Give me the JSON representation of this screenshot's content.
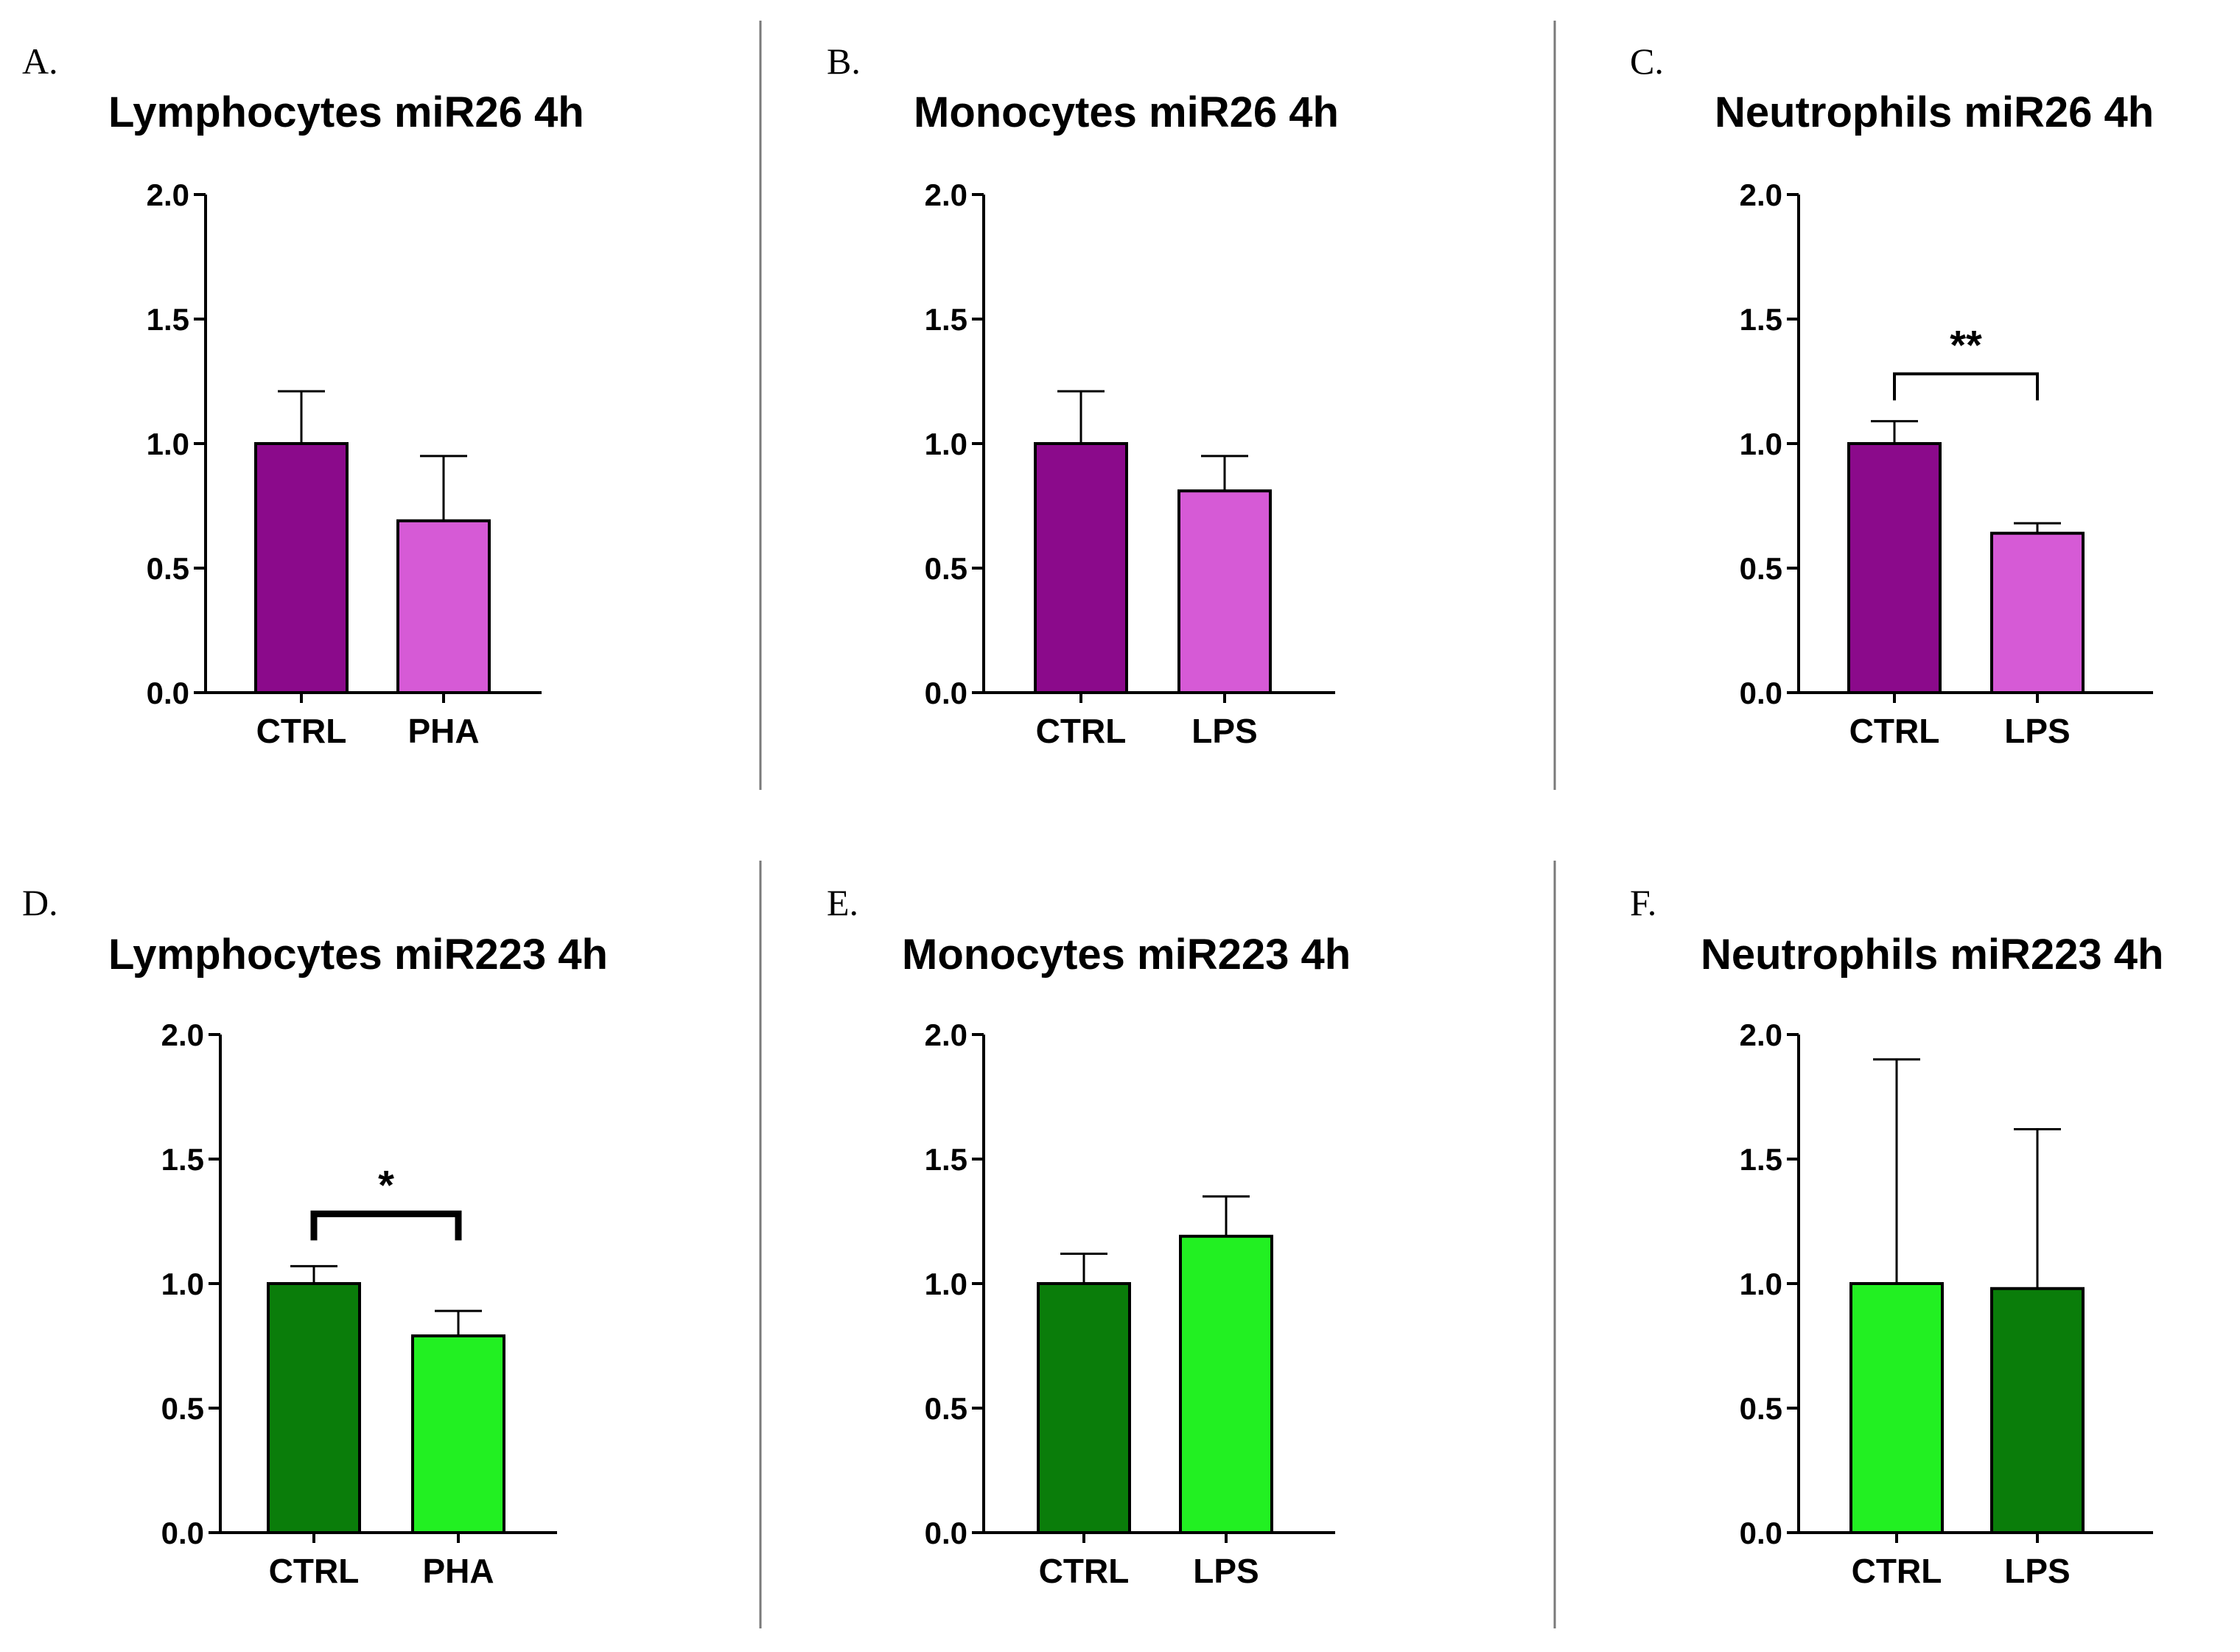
{
  "figure": {
    "colors": {
      "purple_dark": "#8b0a8b",
      "purple_light": "#d65ad6",
      "green_dark": "#0a7d0a",
      "green_light": "#22f022"
    }
  },
  "chart_data": [
    {
      "panel": "A.",
      "type": "bar",
      "title": "Lymphocytes miR26 4h",
      "categories": [
        "CTRL",
        "PHA"
      ],
      "values": [
        1.0,
        0.69
      ],
      "errors": [
        0.21,
        0.26
      ],
      "colors": [
        "#8b0a8b",
        "#d65ad6"
      ],
      "ylim": [
        0,
        2.0
      ],
      "yticks": [
        "0.0",
        "0.5",
        "1.0",
        "1.5",
        "2.0"
      ],
      "xlabel": "",
      "ylabel": "",
      "significance": null
    },
    {
      "panel": "B.",
      "type": "bar",
      "title": "Monocytes miR26 4h",
      "categories": [
        "CTRL",
        "LPS"
      ],
      "values": [
        1.0,
        0.81
      ],
      "errors": [
        0.21,
        0.14
      ],
      "colors": [
        "#8b0a8b",
        "#d65ad6"
      ],
      "ylim": [
        0,
        2.0
      ],
      "yticks": [
        "0.0",
        "0.5",
        "1.0",
        "1.5",
        "2.0"
      ],
      "xlabel": "",
      "ylabel": "",
      "significance": null
    },
    {
      "panel": "C.",
      "type": "bar",
      "title": "Neutrophils miR26 4h",
      "categories": [
        "CTRL",
        "LPS"
      ],
      "values": [
        1.0,
        0.64
      ],
      "errors": [
        0.09,
        0.04
      ],
      "colors": [
        "#8b0a8b",
        "#d65ad6"
      ],
      "ylim": [
        0,
        2.0
      ],
      "yticks": [
        "0.0",
        "0.5",
        "1.0",
        "1.5",
        "2.0"
      ],
      "xlabel": "",
      "ylabel": "",
      "significance": {
        "label": "**",
        "level": 1.28,
        "heavy": false
      }
    },
    {
      "panel": "D.",
      "type": "bar",
      "title": "Lymphocytes miR223 4h",
      "categories": [
        "CTRL",
        "PHA"
      ],
      "values": [
        1.0,
        0.79
      ],
      "errors": [
        0.07,
        0.1
      ],
      "colors": [
        "#0a7d0a",
        "#22f022"
      ],
      "ylim": [
        0,
        2.0
      ],
      "yticks": [
        "0.0",
        "0.5",
        "1.0",
        "1.5",
        "2.0"
      ],
      "xlabel": "",
      "ylabel": "",
      "significance": {
        "label": "*",
        "level": 1.28,
        "heavy": true
      }
    },
    {
      "panel": "E.",
      "type": "bar",
      "title": "Monocytes miR223 4h",
      "categories": [
        "CTRL",
        "LPS"
      ],
      "values": [
        1.0,
        1.19
      ],
      "errors": [
        0.12,
        0.16
      ],
      "colors": [
        "#0a7d0a",
        "#22f022"
      ],
      "ylim": [
        0,
        2.0
      ],
      "yticks": [
        "0.0",
        "0.5",
        "1.0",
        "1.5",
        "2.0"
      ],
      "xlabel": "",
      "ylabel": "",
      "significance": null
    },
    {
      "panel": "F.",
      "type": "bar",
      "title": "Neutrophils miR223 4h",
      "categories": [
        "CTRL",
        "LPS"
      ],
      "values": [
        1.0,
        0.98
      ],
      "errors": [
        0.9,
        0.64
      ],
      "colors": [
        "#22f022",
        "#0a7d0a"
      ],
      "ylim": [
        0,
        2.0
      ],
      "yticks": [
        "0.0",
        "0.5",
        "1.0",
        "1.5",
        "2.0"
      ],
      "xlabel": "",
      "ylabel": "",
      "significance": null
    }
  ]
}
